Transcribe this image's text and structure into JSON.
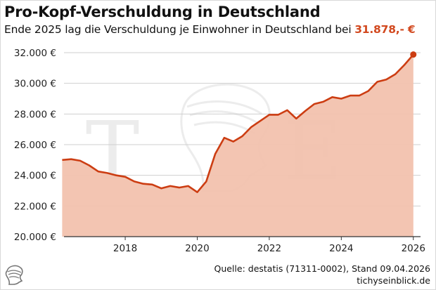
{
  "header": {
    "title": "Pro-Kopf-Verschuldung in Deutschland",
    "subtitle_pre": "Ende 2025 lag die Verschuldung je Einwohner in Deutschland bei ",
    "subtitle_highlight": "31.878,- €"
  },
  "footer": {
    "source": "Quelle: destatis (71311-0002), Stand 09.04.2026",
    "site": "tichyseinblick.de"
  },
  "watermark": {
    "letters": [
      "T",
      "E"
    ],
    "emblem": "helmet-head-icon"
  },
  "colors": {
    "line": "#cc3d12",
    "fill": "#f2c2ae",
    "grid": "#cfcfcf",
    "highlight": "#d2491f"
  },
  "chart_data": {
    "type": "area",
    "xlim": [
      2016.3,
      2026.2
    ],
    "ylim": [
      20000,
      32000
    ],
    "x_ticks": [
      2018,
      2020,
      2022,
      2024,
      2026
    ],
    "x_tick_labels": [
      "2018",
      "2020",
      "2022",
      "2024",
      "2026"
    ],
    "y_ticks": [
      20000,
      22000,
      24000,
      26000,
      28000,
      30000,
      32000
    ],
    "y_tick_labels": [
      "20.000 €",
      "22.000 €",
      "24.000 €",
      "26.000 €",
      "28.000 €",
      "30.000 €",
      "32.000 €"
    ],
    "grid": true,
    "x": [
      2016.25,
      2016.5,
      2016.75,
      2017.0,
      2017.25,
      2017.5,
      2017.75,
      2018.0,
      2018.25,
      2018.5,
      2018.75,
      2019.0,
      2019.25,
      2019.5,
      2019.75,
      2020.0,
      2020.25,
      2020.5,
      2020.75,
      2021.0,
      2021.25,
      2021.5,
      2021.75,
      2022.0,
      2022.25,
      2022.5,
      2022.75,
      2023.0,
      2023.25,
      2023.5,
      2023.75,
      2024.0,
      2024.25,
      2024.5,
      2024.75,
      2025.0,
      2025.25,
      2025.5,
      2025.75,
      2026.0
    ],
    "y": [
      25000,
      25050,
      24950,
      24650,
      24250,
      24150,
      24000,
      23900,
      23600,
      23450,
      23400,
      23150,
      23300,
      23200,
      23300,
      22900,
      23600,
      25400,
      26450,
      26200,
      26550,
      27150,
      27550,
      27950,
      27950,
      28250,
      27700,
      28200,
      28650,
      28800,
      29100,
      29000,
      29200,
      29200,
      29500,
      30100,
      30250,
      30600,
      31200,
      31878
    ],
    "highlight_point": {
      "x": 2026.0,
      "y": 31878
    }
  }
}
